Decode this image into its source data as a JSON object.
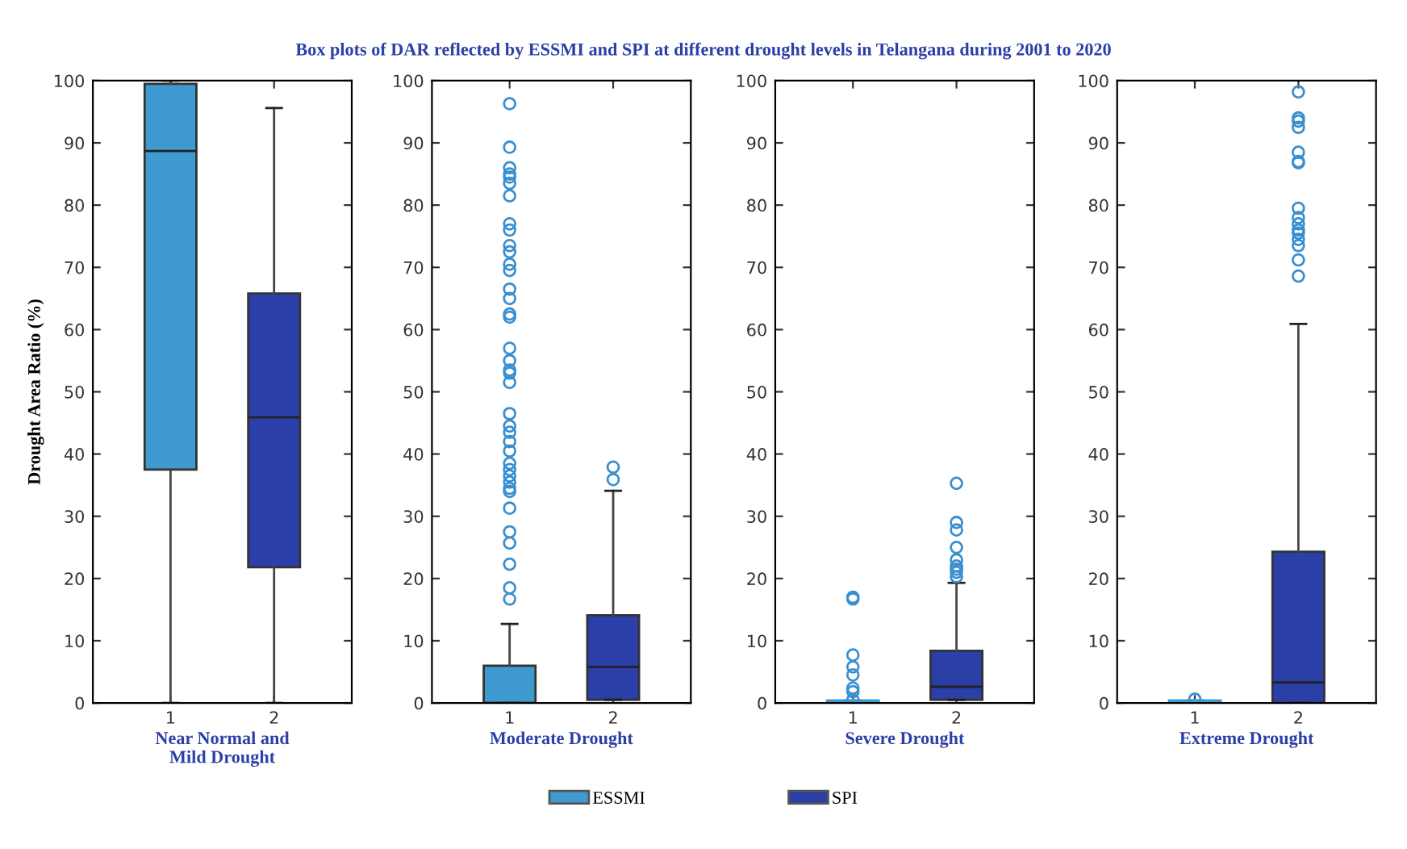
{
  "chart_data": [
    {
      "type": "box",
      "title": "Box plots of DAR reflected by ESSMI and SPI at different drought levels in Telangana during 2001 to 2020",
      "ylabel": "Drought Area Ratio (%)",
      "xlabel": "Near Normal and\nMild Drought",
      "categories": [
        "1",
        "2"
      ],
      "ylim": [
        0,
        100
      ],
      "yticks": [
        0,
        10,
        20,
        30,
        40,
        50,
        60,
        70,
        80,
        90,
        100
      ],
      "legend": "bottom",
      "marker": "circle",
      "grid": false,
      "series": [
        {
          "name": "ESSMI",
          "color": "#3f9ad0",
          "boxes": [
            {
              "low": 0,
              "q1": 37.5,
              "median": 88.7,
              "q3": 99.5,
              "high": 100
            },
            null
          ]
        },
        {
          "name": "SPI",
          "color": "#2b3fa8",
          "boxes": [
            null,
            {
              "low": 0,
              "q1": 21.8,
              "median": 45.9,
              "q3": 65.8,
              "high": 95.6
            }
          ]
        }
      ]
    },
    {
      "type": "box",
      "xlabel": "Moderate Drought",
      "categories": [
        "1",
        "2"
      ],
      "ylim": [
        0,
        100
      ],
      "yticks": [
        0,
        10,
        20,
        30,
        40,
        50,
        60,
        70,
        80,
        90,
        100
      ],
      "marker": "circle",
      "grid": false,
      "series": [
        {
          "name": "ESSMI",
          "color": "#3f9ad0",
          "boxes": [
            {
              "low": 0,
              "q1": 0,
              "median": 0,
              "q3": 6,
              "high": 12.7,
              "outliers": [
                96.3,
                89.3,
                86,
                85,
                84.5,
                83.5,
                81.5,
                77,
                76,
                73.5,
                72.5,
                70.5,
                69.5,
                66.5,
                65,
                62.5,
                62,
                57,
                55,
                53.5,
                53,
                51.5,
                46.5,
                44.5,
                43.5,
                42,
                40.5,
                38.5,
                37.5,
                36.5,
                35.5,
                34.5,
                34,
                31.3,
                27.5,
                25.7,
                22.3,
                18.5,
                16.7
              ]
            },
            null
          ]
        },
        {
          "name": "SPI",
          "color": "#2b3fa8",
          "boxes": [
            null,
            {
              "low": 0.5,
              "q1": 0.5,
              "median": 5.8,
              "q3": 14.1,
              "high": 34.1,
              "outliers": [
                37.9,
                35.9
              ]
            }
          ]
        }
      ]
    },
    {
      "type": "box",
      "xlabel": "Severe Drought",
      "categories": [
        "1",
        "2"
      ],
      "ylim": [
        0,
        100
      ],
      "yticks": [
        0,
        10,
        20,
        30,
        40,
        50,
        60,
        70,
        80,
        90,
        100
      ],
      "marker": "circle",
      "grid": false,
      "series": [
        {
          "name": "ESSMI",
          "color": "#3f9ad0",
          "boxes": [
            {
              "low": 0,
              "q1": 0,
              "median": 0,
              "q3": 0.4,
              "high": 0.4,
              "outliers": [
                17,
                16.7,
                7.7,
                5.8,
                4.5,
                2.4,
                1.8,
                0.5
              ]
            },
            null
          ]
        },
        {
          "name": "SPI",
          "color": "#2b3fa8",
          "boxes": [
            null,
            {
              "low": 0.5,
              "q1": 0.5,
              "median": 2.6,
              "q3": 8.4,
              "high": 19.3,
              "outliers": [
                35.3,
                29,
                27.8,
                25,
                23,
                22,
                21.5,
                21,
                20.3
              ]
            }
          ]
        }
      ]
    },
    {
      "type": "box",
      "xlabel": "Extreme Drought",
      "categories": [
        "1",
        "2"
      ],
      "ylim": [
        0,
        100
      ],
      "yticks": [
        0,
        10,
        20,
        30,
        40,
        50,
        60,
        70,
        80,
        90,
        100
      ],
      "marker": "circle",
      "grid": false,
      "series": [
        {
          "name": "ESSMI",
          "color": "#3f9ad0",
          "boxes": [
            {
              "low": 0,
              "q1": 0,
              "median": 0,
              "q3": 0.4,
              "high": 0.4,
              "outliers": [
                0.6
              ]
            },
            null
          ]
        },
        {
          "name": "SPI",
          "color": "#2b3fa8",
          "boxes": [
            null,
            {
              "low": 0,
              "q1": 0,
              "median": 3.3,
              "q3": 24.3,
              "high": 60.9,
              "outliers": [
                98.2,
                94,
                93.5,
                92.5,
                88.5,
                87,
                86.8,
                79.5,
                78,
                77,
                76,
                75.5,
                74.5,
                73.5,
                71.2,
                68.6
              ]
            }
          ]
        }
      ]
    }
  ]
}
